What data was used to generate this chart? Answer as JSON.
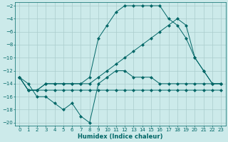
{
  "xlabel": "Humidex (Indice chaleur)",
  "bg_color": "#cceaea",
  "grid_color": "#aacccc",
  "line_color": "#006666",
  "xlim": [
    -0.5,
    23.5
  ],
  "ylim": [
    -20.5,
    -1.5
  ],
  "xticks": [
    0,
    1,
    2,
    3,
    4,
    5,
    6,
    7,
    8,
    9,
    10,
    11,
    12,
    13,
    14,
    15,
    16,
    17,
    18,
    19,
    20,
    21,
    22,
    23
  ],
  "yticks": [
    -20,
    -18,
    -16,
    -14,
    -12,
    -10,
    -8,
    -6,
    -4,
    -2
  ],
  "series": [
    {
      "x": [
        0,
        1,
        2,
        3,
        4,
        5,
        6,
        7,
        8,
        9,
        10,
        11,
        12,
        13,
        14,
        15,
        16,
        17,
        18,
        19,
        20,
        21,
        22,
        23
      ],
      "y": [
        -13,
        -14,
        -16,
        -16,
        -17,
        -18,
        -17,
        -19,
        -20,
        -14,
        -13,
        -12,
        -12,
        -13,
        -13,
        -13,
        -14,
        -14,
        -14,
        -14,
        -14,
        -14,
        -14,
        -14
      ]
    },
    {
      "x": [
        0,
        1,
        2,
        3,
        4,
        5,
        6,
        7,
        8,
        9,
        10,
        11,
        12,
        13,
        14,
        15,
        16,
        17,
        18,
        19,
        20,
        21,
        22,
        23
      ],
      "y": [
        -13,
        -15,
        -15,
        -15,
        -15,
        -15,
        -15,
        -15,
        -15,
        -15,
        -15,
        -15,
        -15,
        -15,
        -15,
        -15,
        -15,
        -15,
        -15,
        -15,
        -15,
        -15,
        -15,
        -15
      ]
    },
    {
      "x": [
        0,
        1,
        2,
        3,
        4,
        5,
        6,
        7,
        8,
        9,
        10,
        11,
        12,
        13,
        14,
        15,
        16,
        17,
        18,
        19,
        20,
        21,
        22,
        23
      ],
      "y": [
        -13,
        -15,
        -15,
        -14,
        -14,
        -14,
        -14,
        -14,
        -14,
        -13,
        -12,
        -11,
        -10,
        -9,
        -8,
        -7,
        -6,
        -5,
        -4,
        -5,
        -10,
        -12,
        -14,
        -14
      ]
    },
    {
      "x": [
        0,
        1,
        2,
        3,
        4,
        5,
        6,
        7,
        8,
        9,
        10,
        11,
        12,
        13,
        14,
        15,
        16,
        17,
        18,
        19,
        20,
        21,
        22,
        23
      ],
      "y": [
        -13,
        -15,
        -15,
        -14,
        -14,
        -14,
        -14,
        -14,
        -13,
        -7,
        -5,
        -3,
        -2,
        -2,
        -2,
        -2,
        -2,
        -4,
        -5,
        -7,
        -10,
        -12,
        -14,
        -14
      ]
    }
  ],
  "markersize": 2.5
}
